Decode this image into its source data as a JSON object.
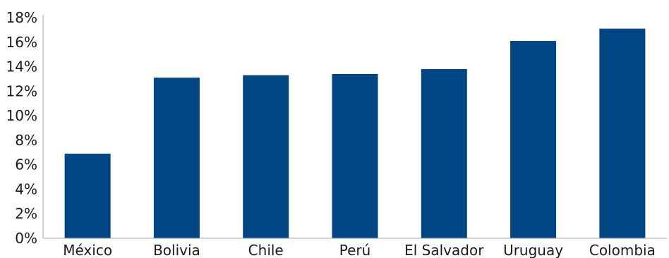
{
  "chart_data": {
    "type": "bar",
    "categories": [
      "México",
      "Bolivia",
      "Chile",
      "Perú",
      "El Salvador",
      "Uruguay",
      "Colombia"
    ],
    "values": [
      6.9,
      13.1,
      13.3,
      13.4,
      13.8,
      16.1,
      17.1
    ],
    "ylim": [
      0,
      18
    ],
    "yticks": [
      0,
      2,
      4,
      6,
      8,
      10,
      12,
      14,
      16,
      18
    ],
    "ytick_labels": [
      "0%",
      "2%",
      "4%",
      "6%",
      "8%",
      "10%",
      "12%",
      "14%",
      "16%",
      "18%"
    ],
    "bar_color": "#004684",
    "grid": false,
    "title": "",
    "xlabel": "",
    "ylabel": ""
  }
}
